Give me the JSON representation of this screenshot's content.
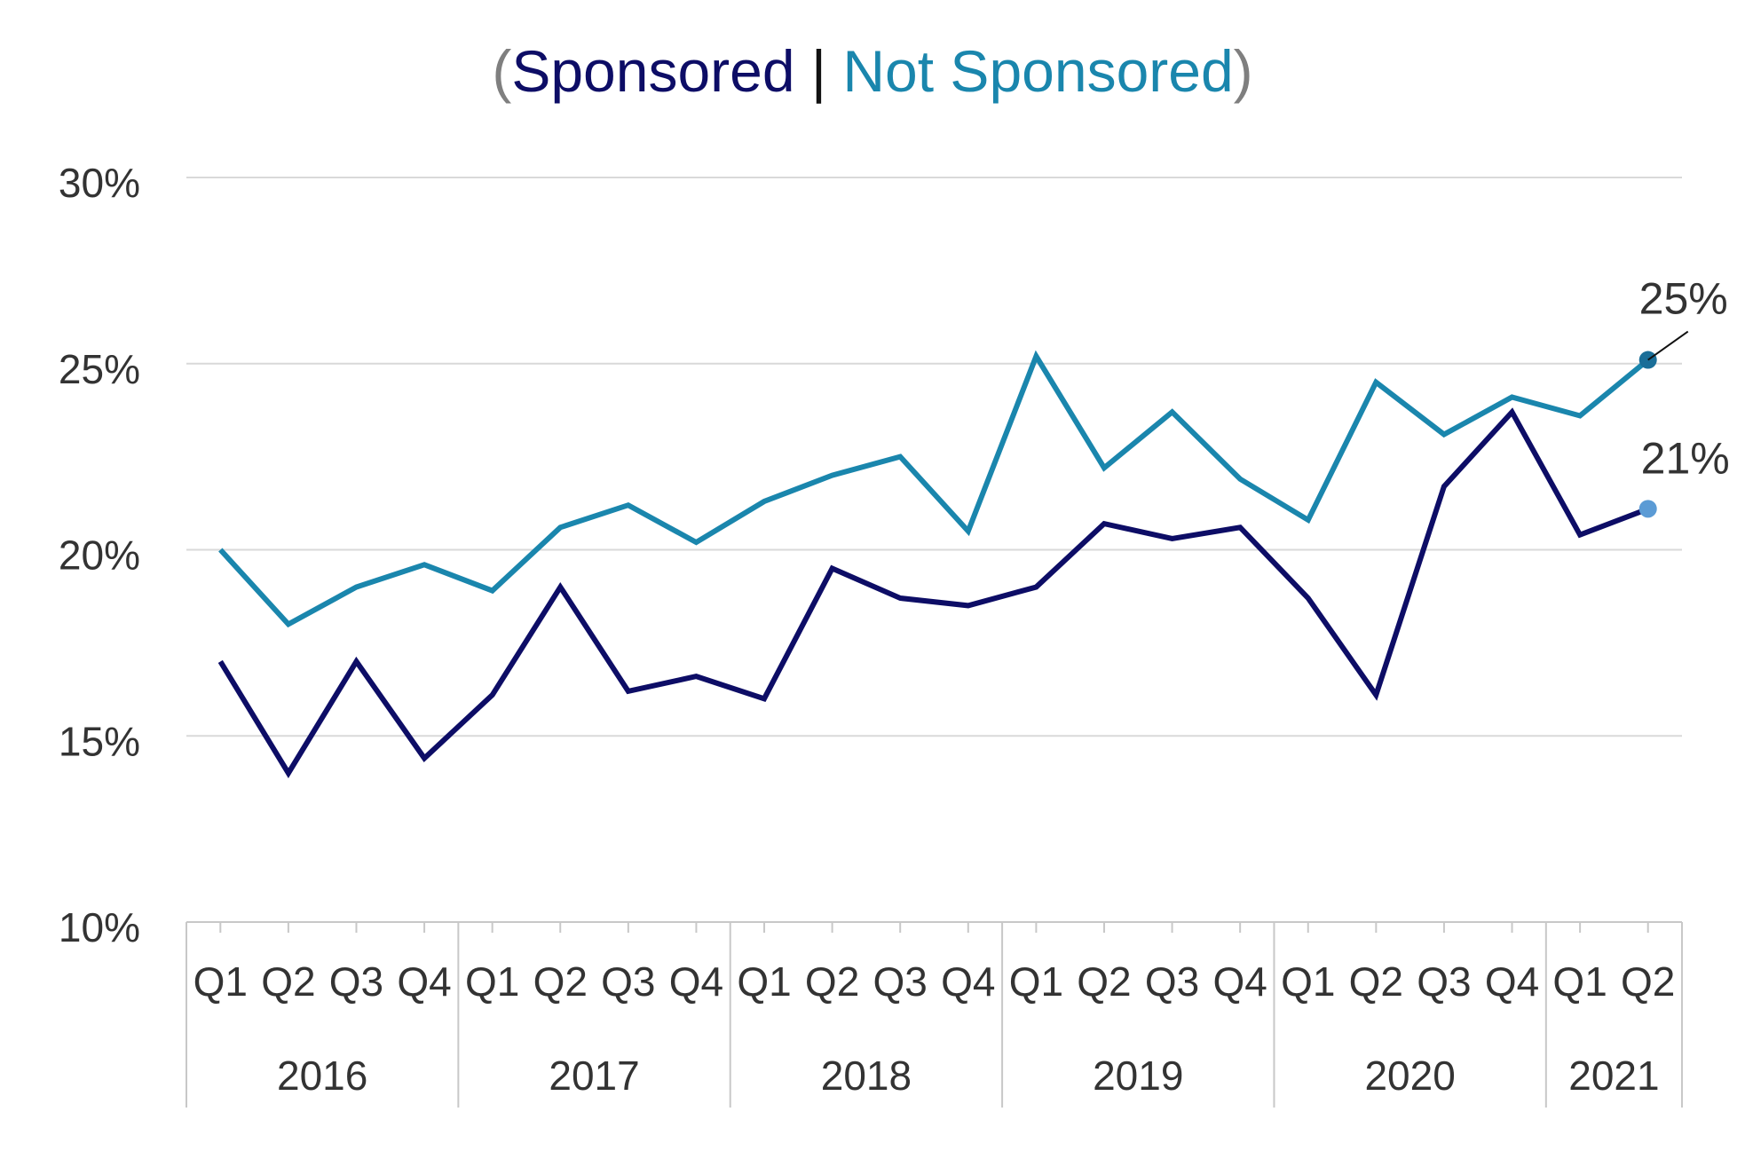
{
  "chart_data": {
    "type": "line",
    "title": {
      "paren_open": "(",
      "sponsored_label": "Sponsored",
      "separator": " | ",
      "not_sponsored_label": "Not Sponsored",
      "paren_close": ")"
    },
    "colors": {
      "sponsored": "#0d0d66",
      "not_sponsored": "#1a86ad",
      "paren": "#7f7f7f",
      "separator": "#111111",
      "end_label_not_sponsored": "#1a7ba8",
      "end_label_sponsored": "#5b9bd5",
      "end_marker_not_sponsored": "#1a6e98",
      "end_marker_sponsored": "#5b9bd5",
      "grid": "#d9d9d9",
      "axis": "#c8c8c8",
      "tick_text": "#333333"
    },
    "quarters": [
      "Q1",
      "Q2",
      "Q3",
      "Q4",
      "Q1",
      "Q2",
      "Q3",
      "Q4",
      "Q1",
      "Q2",
      "Q3",
      "Q4",
      "Q1",
      "Q2",
      "Q3",
      "Q4",
      "Q1",
      "Q2",
      "Q3",
      "Q4",
      "Q1",
      "Q2"
    ],
    "year_groups": [
      {
        "year": "2016",
        "count": 4
      },
      {
        "year": "2017",
        "count": 4
      },
      {
        "year": "2018",
        "count": 4
      },
      {
        "year": "2019",
        "count": 4
      },
      {
        "year": "2020",
        "count": 4
      },
      {
        "year": "2021",
        "count": 2
      }
    ],
    "ylim": [
      10,
      30
    ],
    "yticks": [
      10,
      15,
      20,
      25,
      30
    ],
    "ytick_labels": [
      "10%",
      "15%",
      "20%",
      "25%",
      "30%"
    ],
    "grid": true,
    "series": [
      {
        "key": "sponsored",
        "values": [
          17.0,
          14.0,
          17.0,
          14.4,
          16.1,
          19.0,
          16.2,
          16.6,
          16.0,
          19.5,
          18.7,
          18.5,
          19.0,
          20.7,
          20.3,
          20.6,
          18.7,
          16.1,
          21.7,
          23.7,
          20.4,
          21.1
        ],
        "end_label": "21%"
      },
      {
        "key": "not_sponsored",
        "values": [
          20.0,
          18.0,
          19.0,
          19.6,
          18.9,
          20.6,
          21.2,
          20.2,
          21.3,
          22.0,
          22.5,
          20.5,
          25.2,
          22.2,
          23.7,
          21.9,
          20.8,
          24.5,
          23.1,
          24.1,
          23.6,
          25.1
        ],
        "end_label": "25%"
      }
    ]
  }
}
